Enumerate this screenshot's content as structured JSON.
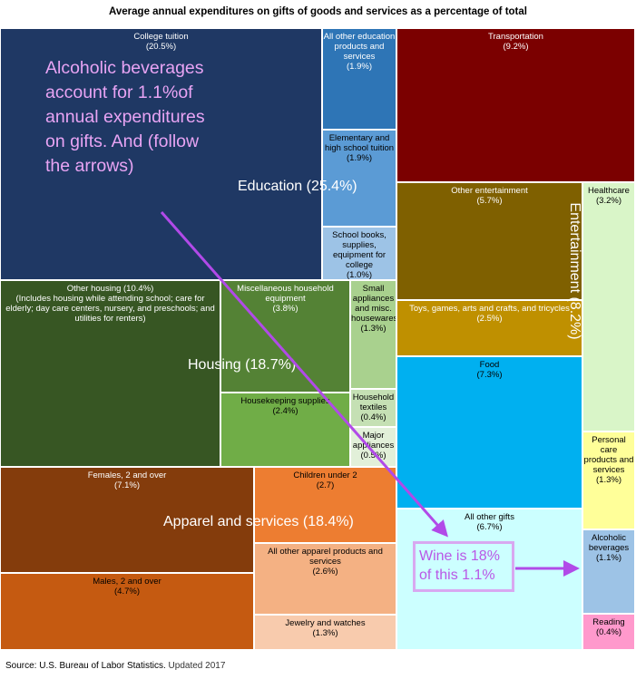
{
  "chart_data": {
    "type": "treemap",
    "title": "Average annual expenditures on gifts of goods and services as a percentage of total",
    "groups": [
      {
        "name": "Education",
        "share": "25.4%",
        "label": "Education (25.4%)"
      },
      {
        "name": "Housing",
        "share": "18.7%",
        "label": "Housing (18.7%)"
      },
      {
        "name": "Apparel and services",
        "share": "18.4%",
        "label": "Apparel and services (18.4%)"
      },
      {
        "name": "Entertainment",
        "share": "8.2%",
        "label": "Entertainment (8.2%)"
      }
    ],
    "cells": [
      {
        "id": "college-tuition",
        "label": "College tuition",
        "value": 20.5,
        "value_label": "(20.5%)",
        "group": "Education",
        "color": "#1f3864",
        "text_color": "#ffffff"
      },
      {
        "id": "all-other-education",
        "label": "All other education products and services",
        "value": 1.9,
        "value_label": "(1.9%)",
        "group": "Education",
        "color": "#2e75b6",
        "text_color": "#ffffff"
      },
      {
        "id": "elementary-tuition",
        "label": "Elementary and high school tuition",
        "value": 1.9,
        "value_label": "(1.9%)",
        "group": "Education",
        "color": "#5b9bd5",
        "text_color": "#000000"
      },
      {
        "id": "school-books",
        "label": "School books, supplies, equipment for college",
        "value": 1.0,
        "value_label": "(1.0%)",
        "group": "Education",
        "color": "#9dc3e6",
        "text_color": "#000000"
      },
      {
        "id": "transportation",
        "label": "Transportation",
        "value": 9.2,
        "value_label": "(9.2%)",
        "group": "",
        "color": "#7b0000",
        "text_color": "#ffffff"
      },
      {
        "id": "other-entertainment",
        "label": "Other entertainment",
        "value": 5.7,
        "value_label": "(5.7%)",
        "group": "Entertainment",
        "color": "#7f6000",
        "text_color": "#ffffff"
      },
      {
        "id": "toys-games",
        "label": "Toys, games, arts and crafts, and tricycles",
        "value": 2.5,
        "value_label": "(2.5%)",
        "group": "Entertainment",
        "color": "#bf9000",
        "text_color": "#ffffff"
      },
      {
        "id": "healthcare",
        "label": "Healthcare",
        "value": 3.2,
        "value_label": "(3.2%)",
        "group": "",
        "color": "#d9f5c8",
        "text_color": "#000000"
      },
      {
        "id": "other-housing",
        "label": "Other housing",
        "value": 10.4,
        "value_label": "(10.4%)",
        "note": "(Includes housing while attending school; care for elderly; day care centers, nursery, and preschools; and utilities for renters)",
        "group": "Housing",
        "color": "#375623",
        "text_color": "#ffffff"
      },
      {
        "id": "misc-household-equipment",
        "label": "Miscellaneous household equipment",
        "value": 3.8,
        "value_label": "(3.8%)",
        "group": "Housing",
        "color": "#548235",
        "text_color": "#ffffff"
      },
      {
        "id": "small-appliances",
        "label": "Small appliances and misc. housewares",
        "value": 1.3,
        "value_label": "(1.3%)",
        "group": "Housing",
        "color": "#a9d18e",
        "text_color": "#000000"
      },
      {
        "id": "housekeeping-supplies",
        "label": "Housekeeping supplies",
        "value": 2.4,
        "value_label": "(2.4%)",
        "group": "Housing",
        "color": "#70ad47",
        "text_color": "#000000"
      },
      {
        "id": "household-textiles",
        "label": "Household textiles",
        "value": 0.4,
        "value_label": "(0.4%)",
        "group": "Housing",
        "color": "#c5e0b4",
        "text_color": "#000000"
      },
      {
        "id": "major-appliances",
        "label": "Major appliances",
        "value": 0.5,
        "value_label": "(0.5%)",
        "group": "Housing",
        "color": "#e2f0d9",
        "text_color": "#000000"
      },
      {
        "id": "food",
        "label": "Food",
        "value": 7.3,
        "value_label": "(7.3%)",
        "group": "",
        "color": "#00b0f0",
        "text_color": "#000000"
      },
      {
        "id": "personal-care",
        "label": "Personal care products and services",
        "value": 1.3,
        "value_label": "(1.3%)",
        "group": "",
        "color": "#ffff99",
        "text_color": "#000000"
      },
      {
        "id": "females",
        "label": "Females, 2 and over",
        "value": 7.1,
        "value_label": "(7.1%)",
        "group": "Apparel and services",
        "color": "#843c0c",
        "text_color": "#ffffff"
      },
      {
        "id": "children-under-2",
        "label": "Children under 2",
        "value": 2.7,
        "value_label": "(2.7)",
        "group": "Apparel and services",
        "color": "#ed7d31",
        "text_color": "#000000"
      },
      {
        "id": "all-other-apparel",
        "label": "All other apparel products and services",
        "value": 2.6,
        "value_label": "(2.6%)",
        "group": "Apparel and services",
        "color": "#f4b183",
        "text_color": "#000000"
      },
      {
        "id": "males",
        "label": "Males, 2 and over",
        "value": 4.7,
        "value_label": "(4.7%)",
        "group": "Apparel and services",
        "color": "#c55a11",
        "text_color": "#000000"
      },
      {
        "id": "jewelry",
        "label": "Jewelry and watches",
        "value": 1.3,
        "value_label": "(1.3%)",
        "group": "Apparel and services",
        "color": "#f8cbad",
        "text_color": "#000000"
      },
      {
        "id": "all-other-gifts",
        "label": "All other gifts",
        "value": 6.7,
        "value_label": "(6.7%)",
        "group": "",
        "color": "#ccffff",
        "text_color": "#000000"
      },
      {
        "id": "alcoholic-beverages",
        "label": "Alcoholic beverages",
        "value": 1.1,
        "value_label": "(1.1%)",
        "group": "",
        "color": "#9dc3e6",
        "text_color": "#000000"
      },
      {
        "id": "reading",
        "label": "Reading",
        "value": 0.4,
        "value_label": "(0.4%)",
        "group": "",
        "color": "#ff99cc",
        "text_color": "#000000"
      }
    ],
    "annotations": [
      "Alcoholic beverages account for 1.1%of annual expenditures on gifts. And (follow the arrows)",
      "Wine is 18% of this 1.1%"
    ],
    "source": "Source: U.S. Bureau of Labor Statistics.",
    "updated": "Updated 2017"
  },
  "colors": {
    "annotation_text": "#e8a4f4",
    "arrow": "#b14ae8",
    "wine_text": "#b957e6",
    "wine_border": "#d8a8f0"
  }
}
